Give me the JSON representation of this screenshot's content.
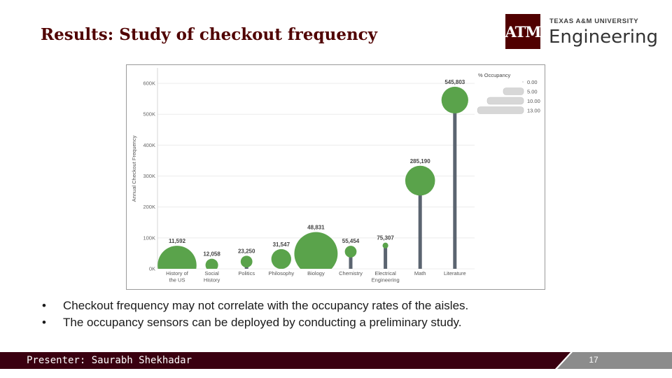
{
  "slide": {
    "title": "Results: Study of checkout frequency",
    "page_number": "17",
    "presenter": "Presenter: Saurabh Shekhadar"
  },
  "logo": {
    "mark": "ATM",
    "university": "TEXAS A&M UNIVERSITY",
    "college": "Engineering"
  },
  "bullets": [
    "Checkout frequency may not correlate with the occupancy rates of the aisles.",
    "The occupancy sensors can be deployed by conducting a preliminary study."
  ],
  "colors": {
    "maroon": "#500000",
    "footer_dark": "#3a0010",
    "footer_gray": "#8c8c8c",
    "bubble": "#5aa34b",
    "stem": "#5b6470",
    "legend_bar": "#d7d7d7"
  },
  "chart_data": {
    "type": "scatter",
    "ylabel": "Annual Checkout Frequency",
    "ylim": [
      0,
      650000
    ],
    "yticks": [
      0,
      100000,
      200000,
      300000,
      400000,
      500000,
      600000
    ],
    "ytick_labels": [
      "0K",
      "100K",
      "200K",
      "300K",
      "400K",
      "500K",
      "600K"
    ],
    "grid": true,
    "categories": [
      [
        "History of",
        "the US"
      ],
      [
        "Social",
        "History"
      ],
      [
        "Politics"
      ],
      [
        "Philosophy"
      ],
      [
        "Biology"
      ],
      [
        "Chemistry"
      ],
      [
        "Electrical",
        "Engineering"
      ],
      [
        "Math"
      ],
      [
        "Literature"
      ]
    ],
    "values": [
      11592,
      12058,
      23250,
      31547,
      48831,
      55454,
      75307,
      285190,
      545803
    ],
    "value_labels": [
      "11,592",
      "12,058",
      "23,250",
      "31,547",
      "48,831",
      "55,454",
      "75,307",
      "285,190",
      "545,803"
    ],
    "occupancy": [
      11.5,
      2.8,
      2.5,
      5.2,
      13.0,
      2.5,
      0.5,
      8.5,
      7.5
    ],
    "legend": {
      "title": "% Occupancy",
      "placement": "top-right",
      "entries": [
        0.0,
        5.0,
        10.0,
        13.0
      ],
      "entry_labels": [
        "0.00",
        "5.00",
        "10.00",
        "13.00"
      ]
    }
  }
}
